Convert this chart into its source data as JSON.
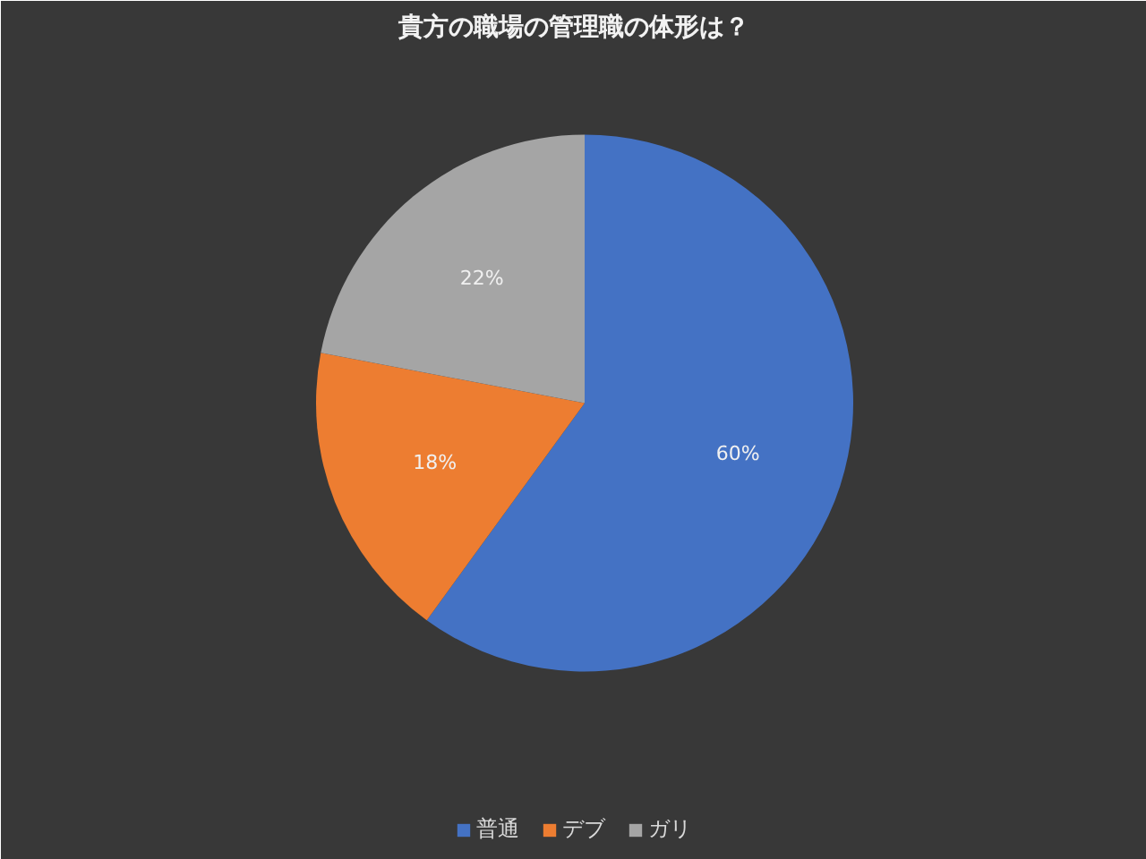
{
  "chart_data": {
    "type": "pie",
    "title": "貴方の職場の管理職の体形は？",
    "categories": [
      "普通",
      "デブ",
      "ガリ"
    ],
    "values": [
      60,
      18,
      22
    ],
    "colors": [
      "#4472c4",
      "#ed7d31",
      "#a5a5a5"
    ],
    "value_labels": [
      "60%",
      "18%",
      "22%"
    ],
    "legend": "bottom"
  }
}
